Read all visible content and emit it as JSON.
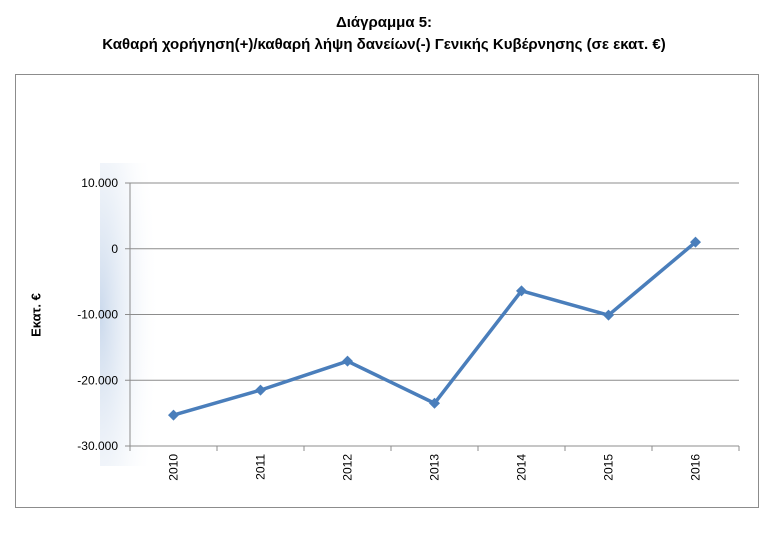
{
  "chart_data": {
    "type": "line",
    "title": "Διάγραμμα 5:",
    "subtitle": "Καθαρή χορήγηση(+)/καθαρή λήψη δανείων(-) Γενικής Κυβέρνησης (σε εκατ. €)",
    "xlabel": "",
    "ylabel": "Εκατ. €",
    "categories": [
      "2010",
      "2011",
      "2012",
      "2013",
      "2014",
      "2015",
      "2016"
    ],
    "series": [
      {
        "values": [
          -25300,
          -21500,
          -17100,
          -23500,
          -6400,
          -10100,
          1000
        ],
        "color": "#4a7ebb"
      }
    ],
    "ylim": [
      -30000,
      10000
    ],
    "yticks": [
      10000,
      0,
      -10000,
      -20000,
      -30000
    ],
    "ytick_labels": [
      "10.000",
      "0",
      "-10.000",
      "-20.000",
      "-30.000"
    ],
    "grid": true,
    "legend": "none",
    "marker": "diamond"
  }
}
